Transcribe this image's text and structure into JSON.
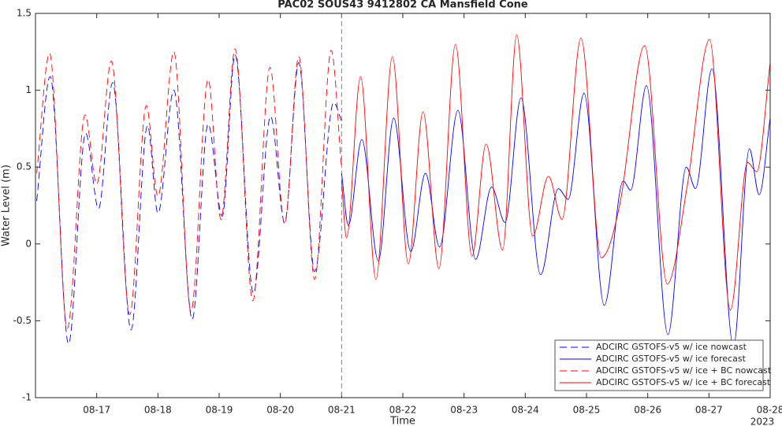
{
  "chart_data": {
    "type": "line",
    "title": "PAC02 SOUS43 9412802 CA Mansfield Cone",
    "xlabel": "Time",
    "ylabel": "Water Level (m)",
    "xtick_year": "2023",
    "xlim": [
      16,
      28
    ],
    "ylim": [
      -1,
      1.5
    ],
    "yticks": [
      -1,
      -0.5,
      0,
      0.5,
      1,
      1.5
    ],
    "xticks": [
      {
        "value": 17,
        "label": "08-17"
      },
      {
        "value": 18,
        "label": "08-18"
      },
      {
        "value": 19,
        "label": "08-19"
      },
      {
        "value": 20,
        "label": "08-20"
      },
      {
        "value": 21,
        "label": "08-21"
      },
      {
        "value": 22,
        "label": "08-22"
      },
      {
        "value": 23,
        "label": "08-23"
      },
      {
        "value": 24,
        "label": "08-24"
      },
      {
        "value": 25,
        "label": "08-25"
      },
      {
        "value": 26,
        "label": "08-26"
      },
      {
        "value": 27,
        "label": "08-27"
      },
      {
        "value": 28,
        "label": "08-28"
      }
    ],
    "divider_x": 21,
    "grid": false,
    "legend": "lower right",
    "series": [
      {
        "name": "ADCIRC GSTOFS-v5 w/ ice nowcast",
        "color": "#0000ff",
        "dash": true,
        "x": [
          16.02,
          16.24,
          16.54,
          16.82,
          17.03,
          17.26,
          17.56,
          17.83,
          18.0,
          18.26,
          18.56,
          18.82,
          19.05,
          19.26,
          19.56,
          19.84,
          20.07,
          20.3,
          20.56,
          20.87,
          21.0
        ],
        "values": [
          0.28,
          1.09,
          -0.65,
          0.72,
          0.23,
          1.05,
          -0.56,
          0.77,
          0.2,
          1.0,
          -0.49,
          0.78,
          0.18,
          1.23,
          -0.32,
          0.83,
          0.14,
          1.18,
          -0.18,
          0.92,
          0.8
        ]
      },
      {
        "name": "ADCIRC GSTOFS-v5 w/ ice forecast",
        "color": "#0000ff",
        "dash": false,
        "x": [
          21.0,
          21.11,
          21.33,
          21.6,
          21.85,
          22.13,
          22.37,
          22.6,
          22.9,
          23.19,
          23.45,
          23.67,
          23.93,
          24.25,
          24.54,
          24.7,
          24.96,
          25.29,
          25.6,
          25.72,
          25.98,
          26.33,
          26.63,
          26.78,
          27.05,
          27.4,
          27.66,
          27.82,
          28.0
        ],
        "values": [
          0.46,
          0.12,
          0.68,
          -0.11,
          0.82,
          -0.05,
          0.46,
          -0.02,
          0.87,
          -0.1,
          0.37,
          0.14,
          0.95,
          -0.2,
          0.36,
          0.29,
          0.98,
          -0.4,
          0.41,
          0.35,
          1.03,
          -0.59,
          0.5,
          0.36,
          1.14,
          -0.67,
          0.62,
          0.32,
          0.82
        ]
      },
      {
        "name": "ADCIRC GSTOFS-v5 w/ ice + BC nowcast",
        "color": "#ff0000",
        "dash": true,
        "x": [
          16.02,
          16.23,
          16.52,
          16.81,
          17.0,
          17.24,
          17.54,
          17.81,
          18.0,
          18.26,
          18.54,
          18.82,
          19.03,
          19.26,
          19.55,
          19.83,
          20.07,
          20.3,
          20.56,
          20.83,
          21.0
        ],
        "values": [
          0.46,
          1.24,
          -0.55,
          0.84,
          0.39,
          1.19,
          -0.46,
          0.9,
          0.31,
          1.25,
          -0.44,
          1.07,
          0.16,
          1.27,
          -0.37,
          1.15,
          0.13,
          1.22,
          -0.23,
          1.26,
          0.49
        ]
      },
      {
        "name": "ADCIRC GSTOFS-v5 w/ ice + BC forecast",
        "color": "#ff0000",
        "dash": false,
        "x": [
          21.0,
          21.08,
          21.31,
          21.56,
          21.83,
          22.09,
          22.33,
          22.59,
          22.86,
          23.13,
          23.36,
          23.63,
          23.86,
          24.12,
          24.38,
          24.6,
          24.91,
          25.24,
          25.55,
          25.95,
          26.32,
          26.65,
          27.01,
          27.35,
          27.63,
          27.78,
          28.0
        ],
        "values": [
          0.41,
          0.04,
          1.09,
          -0.23,
          1.22,
          -0.13,
          0.86,
          -0.16,
          1.3,
          -0.08,
          0.65,
          -0.04,
          1.36,
          0.05,
          0.44,
          0.16,
          1.34,
          -0.09,
          0.27,
          1.29,
          -0.26,
          0.39,
          1.33,
          -0.43,
          0.53,
          0.47,
          1.18
        ]
      }
    ]
  }
}
